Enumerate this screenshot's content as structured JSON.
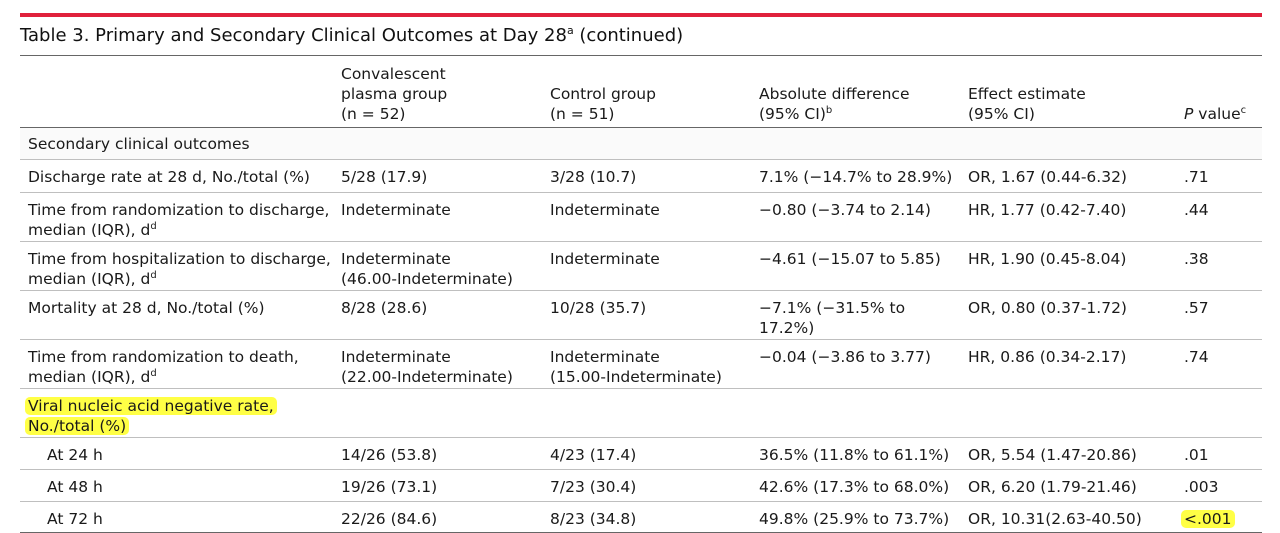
{
  "table": {
    "title": "Table 3. Primary and Secondary Clinical Outcomes at Day 28",
    "title_sup": "a",
    "title_suffix": " (continued)",
    "header": {
      "col2": [
        "Convalescent",
        "plasma group",
        "(n = 52)"
      ],
      "col3": [
        "Control group",
        "(n = 51)"
      ],
      "col4": [
        "Absolute difference",
        "(95% CI)"
      ],
      "col4_sup": "b",
      "col5": [
        "Effect estimate",
        "(95% CI)"
      ],
      "col6_italic": "P",
      "col6_rest": " value",
      "col6_sup": "c"
    },
    "section_title": "Secondary clinical outcomes",
    "rows": [
      {
        "label": "Discharge rate at 28 d, No./total (%)",
        "plasma": "5/28 (17.9)",
        "control": "3/28 (10.7)",
        "diff": "7.1% (−14.7% to 28.9%)",
        "effect": "OR, 1.67 (0.44-6.32)",
        "p": ".71"
      },
      {
        "label1": "Time from randomization to discharge,",
        "label2": "median (IQR), d",
        "sup": "d",
        "plasma": "Indeterminate",
        "control": "Indeterminate",
        "diff": "−0.80 (−3.74 to 2.14)",
        "effect": "HR, 1.77 (0.42-7.40)",
        "p": ".44"
      },
      {
        "label1": "Time from hospitalization to discharge,",
        "label2": "median (IQR), d",
        "sup": "d",
        "plasma1": "Indeterminate",
        "plasma2": "(46.00-Indeterminate)",
        "control": "Indeterminate",
        "diff": "−4.61 (−15.07 to 5.85)",
        "effect": "HR, 1.90 (0.45-8.04)",
        "p": ".38"
      },
      {
        "label": "Mortality at 28 d, No./total (%)",
        "plasma": "8/28 (28.6)",
        "control": "10/28 (35.7)",
        "diff1": "−7.1% (−31.5% to",
        "diff2": "17.2%)",
        "effect": "OR, 0.80 (0.37-1.72)",
        "p": ".57"
      },
      {
        "label1": "Time from randomization to death,",
        "label2": "median (IQR), d",
        "sup": "d",
        "plasma1": "Indeterminate",
        "plasma2": "(22.00-Indeterminate)",
        "control1": "Indeterminate",
        "control2": "(15.00-Indeterminate)",
        "diff": "−0.04 (−3.86 to 3.77)",
        "effect": "HR, 0.86 (0.34-2.17)",
        "p": ".74"
      }
    ],
    "viral_label1": "Viral nucleic acid negative rate,",
    "viral_label2": "No./total (%)",
    "viral_rows": [
      {
        "label": "At 24 h",
        "plasma": "14/26 (53.8)",
        "control": "4/23 (17.4)",
        "diff": "36.5% (11.8% to 61.1%)",
        "effect": "OR, 5.54 (1.47-20.86)",
        "p": ".01"
      },
      {
        "label": "At 48 h",
        "plasma": "19/26 (73.1)",
        "control": "7/23 (30.4)",
        "diff": "42.6% (17.3% to 68.0%)",
        "effect": "OR, 6.20 (1.79-21.46)",
        "p": ".003"
      },
      {
        "label": "At 72 h",
        "plasma": "22/26 (84.6)",
        "control": "8/23 (34.8)",
        "diff": "49.8% (25.9% to 73.7%)",
        "effect": "OR, 10.31(2.63-40.50)",
        "p": "<.001"
      }
    ],
    "colors": {
      "accent_bar": "#e0213c",
      "highlight": "#ffff45"
    }
  }
}
